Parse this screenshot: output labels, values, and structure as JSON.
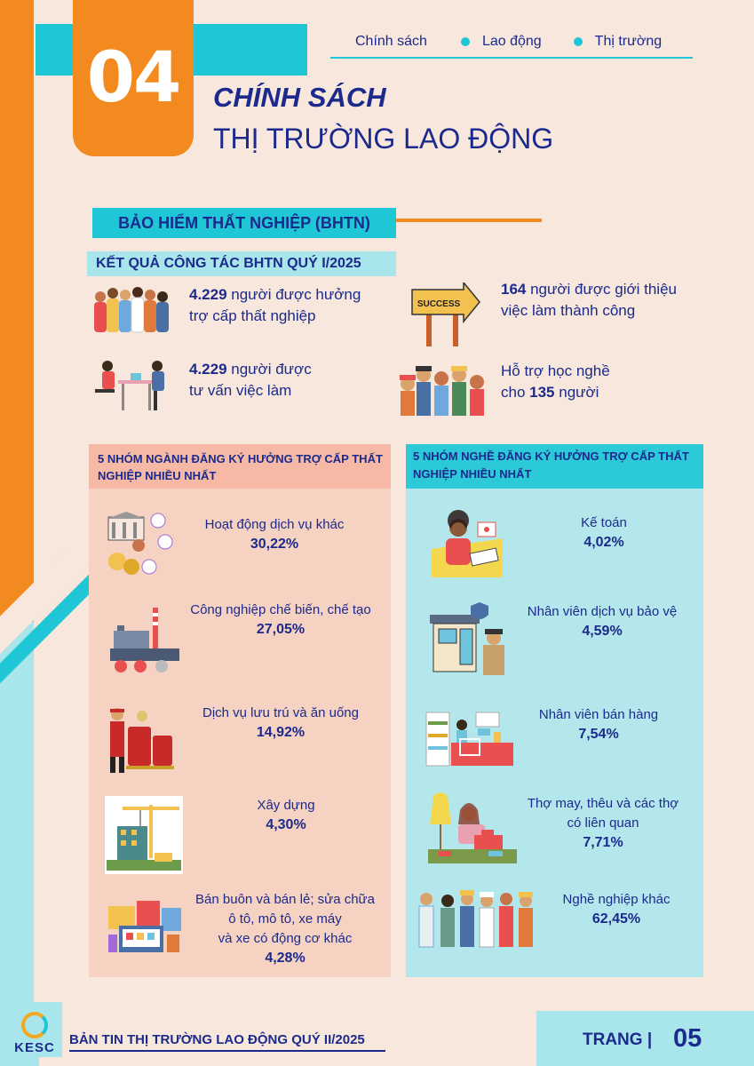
{
  "section_number": "04",
  "nav": {
    "item1": "Chính sách",
    "item2": "Lao động",
    "item3": "Thị trường"
  },
  "title": {
    "line1": "CHÍNH SÁCH",
    "line2": "THỊ TRƯỜNG LAO ĐỘNG"
  },
  "bhtn_label": "BẢO HIỂM THẤT NGHIỆP (BHTN)",
  "results_label": "KẾT QUẢ CÔNG TÁC BHTN QUÝ I/2025",
  "stats": {
    "s1": {
      "num": "4.229",
      "text1": " người được hưởng",
      "text2": "trợ cấp thất nghiệp"
    },
    "s2": {
      "num": "164",
      "text1": " người được giới thiệu",
      "text2": "việc làm thành công"
    },
    "s3": {
      "num": "4.229",
      "text1": " người được",
      "text2": "tư vấn việc làm"
    },
    "s4": {
      "text1": "Hỗ trợ học nghề",
      "text2a": "cho ",
      "num": "135",
      "text2b": " người"
    }
  },
  "success_sign": "SUCCESS",
  "industries": {
    "header": "5 NHÓM NGÀNH ĐĂNG KÝ HƯỞNG TRỢ CẤP THẤT NGHIỆP NHIỀU NHẤT",
    "items": [
      {
        "label": "Hoạt động dịch vụ khác",
        "pct": "30,22%"
      },
      {
        "label": "Công nghiệp chế biến, chế tạo",
        "pct": "27,05%"
      },
      {
        "label": "Dịch vụ lưu trú và ăn uống",
        "pct": "14,92%"
      },
      {
        "label": "Xây dựng",
        "pct": "4,30%"
      },
      {
        "label1": "Bán buôn và bán lẻ; sửa chữa",
        "label2": "ô tô, mô tô, xe máy",
        "label3": "và xe có động cơ khác",
        "pct": "4,28%"
      }
    ]
  },
  "occupations": {
    "header": "5 NHÓM NGHỀ ĐĂNG KÝ HƯỞNG TRỢ CẤP THẤT NGHIỆP NHIỀU NHẤT",
    "items": [
      {
        "label": "Kế toán",
        "pct": "4,02%"
      },
      {
        "label": "Nhân viên dịch vụ bảo vệ",
        "pct": "4,59%"
      },
      {
        "label": "Nhân viên bán hàng",
        "pct": "7,54%"
      },
      {
        "label1": "Thợ may, thêu và các thợ",
        "label2": "có liên quan",
        "pct": "7,71%"
      },
      {
        "label": "Nghề nghiệp khác",
        "pct": "62,45%"
      }
    ]
  },
  "footer": {
    "logo_text": "KESC",
    "title": "BẢN TIN THỊ TRƯỜNG LAO ĐỘNG QUÝ II/2025",
    "page_label": "TRANG |",
    "page_number": "05"
  }
}
